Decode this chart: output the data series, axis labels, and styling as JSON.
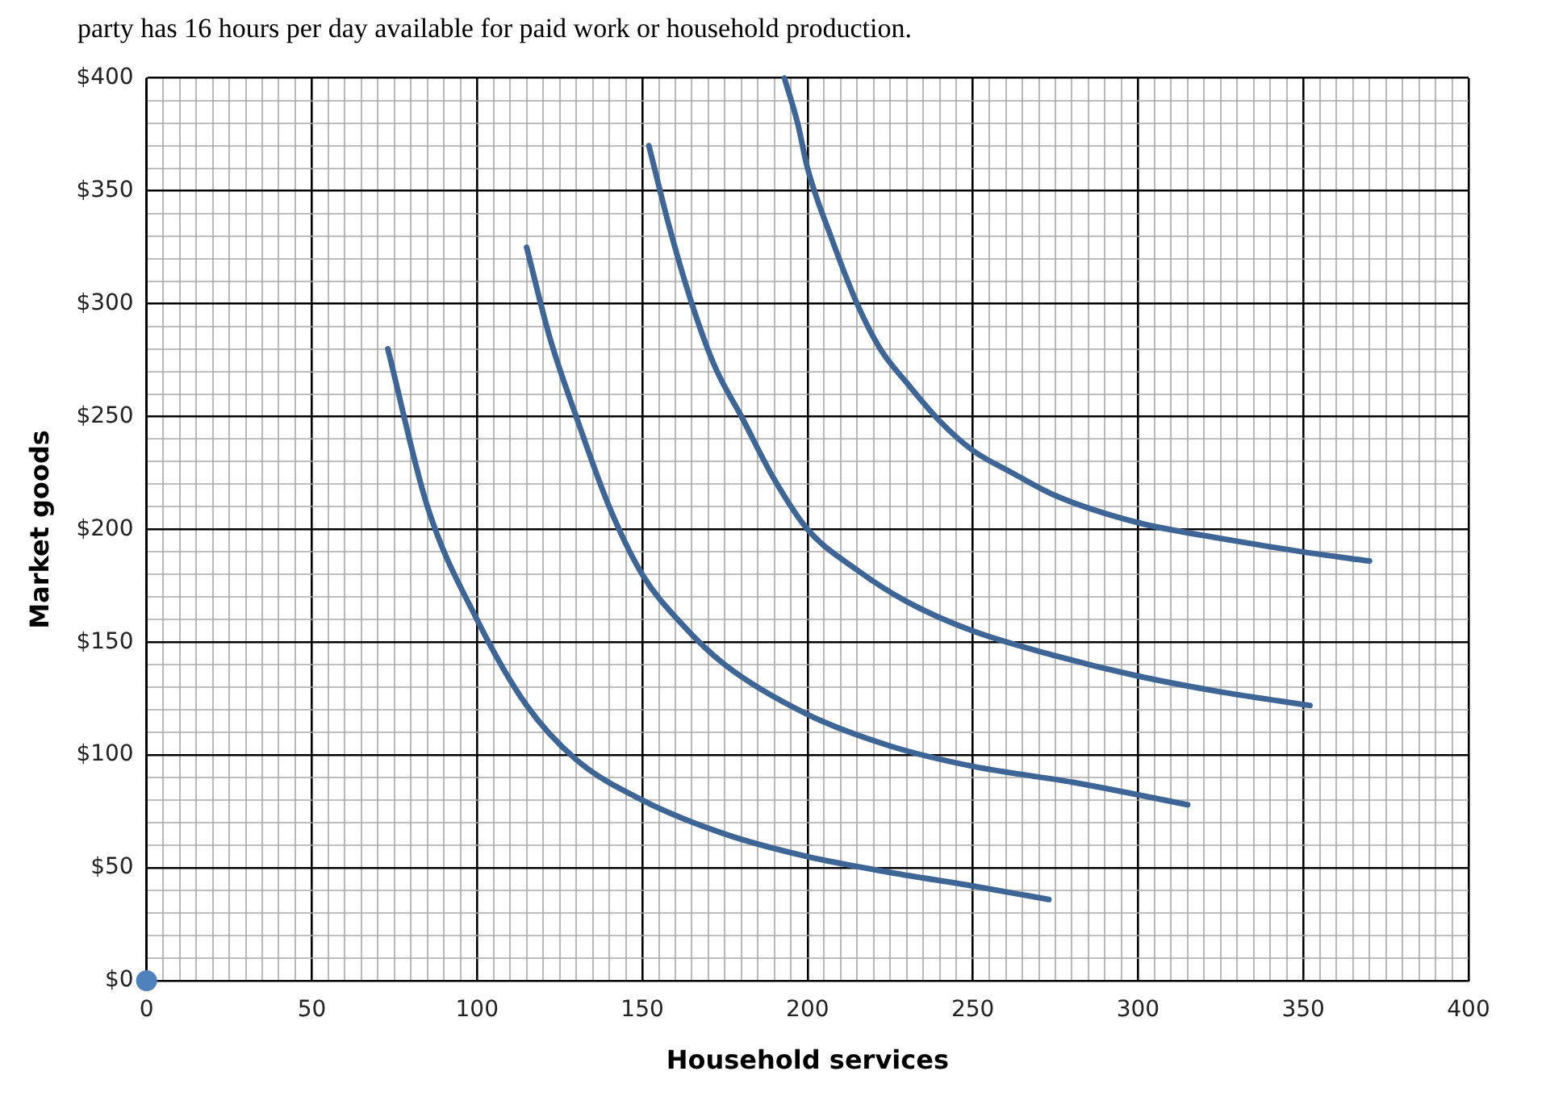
{
  "chart_data": {
    "type": "line",
    "annotations": [
      "party has 16 hours per day available for paid work or household production."
    ],
    "xlabel": "Household services",
    "ylabel": "Market goods",
    "xlim": [
      0,
      400
    ],
    "ylim": [
      0,
      400
    ],
    "xticks": [
      0,
      {
        "value": 5,
        "label": null
      },
      {
        "value": 10,
        "label": null
      },
      {
        "value": 15,
        "label": null
      },
      {
        "value": 20,
        "label": null
      },
      {
        "value": 25,
        "label": null
      },
      {
        "value": 30,
        "label": null
      },
      {
        "value": 35,
        "label": null
      },
      {
        "value": 40,
        "label": null
      },
      {
        "value": 45,
        "label": null
      },
      50,
      {
        "value": 55,
        "label": null
      },
      {
        "value": 60,
        "label": null
      },
      {
        "value": 65,
        "label": null
      },
      {
        "value": 70,
        "label": null
      },
      {
        "value": 75,
        "label": null
      },
      {
        "value": 80,
        "label": null
      },
      {
        "value": 85,
        "label": null
      },
      {
        "value": 90,
        "label": null
      },
      {
        "value": 95,
        "label": null
      },
      100,
      {
        "value": 105,
        "label": null
      },
      {
        "value": 110,
        "label": null
      },
      {
        "value": 115,
        "label": null
      },
      {
        "value": 120,
        "label": null
      },
      {
        "value": 125,
        "label": null
      },
      {
        "value": 130,
        "label": null
      },
      {
        "value": 135,
        "label": null
      },
      {
        "value": 140,
        "label": null
      },
      {
        "value": 145,
        "label": null
      },
      150,
      {
        "value": 155,
        "label": null
      },
      {
        "value": 160,
        "label": null
      },
      {
        "value": 165,
        "label": null
      },
      {
        "value": 170,
        "label": null
      },
      {
        "value": 175,
        "label": null
      },
      {
        "value": 180,
        "label": null
      },
      {
        "value": 185,
        "label": null
      },
      {
        "value": 190,
        "label": null
      },
      {
        "value": 195,
        "label": null
      },
      200,
      {
        "value": 205,
        "label": null
      },
      {
        "value": 210,
        "label": null
      },
      {
        "value": 215,
        "label": null
      },
      {
        "value": 220,
        "label": null
      },
      {
        "value": 225,
        "label": null
      },
      {
        "value": 230,
        "label": null
      },
      {
        "value": 235,
        "label": null
      },
      {
        "value": 240,
        "label": null
      },
      {
        "value": 245,
        "label": null
      },
      250,
      {
        "value": 255,
        "label": null
      },
      {
        "value": 260,
        "label": null
      },
      {
        "value": 265,
        "label": null
      },
      {
        "value": 270,
        "label": null
      },
      {
        "value": 275,
        "label": null
      },
      {
        "value": 280,
        "label": null
      },
      {
        "value": 285,
        "label": null
      },
      {
        "value": 290,
        "label": null
      },
      {
        "value": 295,
        "label": null
      },
      300,
      {
        "value": 305,
        "label": null
      },
      {
        "value": 310,
        "label": null
      },
      {
        "value": 315,
        "label": null
      },
      {
        "value": 320,
        "label": null
      },
      {
        "value": 325,
        "label": null
      },
      {
        "value": 330,
        "label": null
      },
      {
        "value": 335,
        "label": null
      },
      {
        "value": 340,
        "label": null
      },
      {
        "value": 345,
        "label": null
      },
      350,
      {
        "value": 355,
        "label": null
      },
      {
        "value": 360,
        "label": null
      },
      {
        "value": 365,
        "label": null
      },
      {
        "value": 370,
        "label": null
      },
      {
        "value": 375,
        "label": null
      },
      {
        "value": 380,
        "label": null
      },
      {
        "value": 385,
        "label": null
      },
      {
        "value": 390,
        "label": null
      },
      {
        "value": 395,
        "label": null
      },
      400
    ],
    "yticks": [
      {
        "value": 0,
        "label": "$0"
      },
      {
        "value": 10,
        "label": null
      },
      {
        "value": 20,
        "label": null
      },
      {
        "value": 30,
        "label": null
      },
      {
        "value": 40,
        "label": null
      },
      {
        "value": 50,
        "label": "$50"
      },
      {
        "value": 60,
        "label": null
      },
      {
        "value": 70,
        "label": null
      },
      {
        "value": 80,
        "label": null
      },
      {
        "value": 90,
        "label": null
      },
      {
        "value": 100,
        "label": "$100"
      },
      {
        "value": 110,
        "label": null
      },
      {
        "value": 120,
        "label": null
      },
      {
        "value": 130,
        "label": null
      },
      {
        "value": 140,
        "label": null
      },
      {
        "value": 150,
        "label": "$150"
      },
      {
        "value": 160,
        "label": null
      },
      {
        "value": 170,
        "label": null
      },
      {
        "value": 180,
        "label": null
      },
      {
        "value": 190,
        "label": null
      },
      {
        "value": 200,
        "label": "$200"
      },
      {
        "value": 210,
        "label": null
      },
      {
        "value": 220,
        "label": null
      },
      {
        "value": 230,
        "label": null
      },
      {
        "value": 240,
        "label": null
      },
      {
        "value": 250,
        "label": "$250"
      },
      {
        "value": 260,
        "label": null
      },
      {
        "value": 270,
        "label": null
      },
      {
        "value": 280,
        "label": null
      },
      {
        "value": 290,
        "label": null
      },
      {
        "value": 300,
        "label": "$300"
      },
      {
        "value": 310,
        "label": null
      },
      {
        "value": 320,
        "label": null
      },
      {
        "value": 330,
        "label": null
      },
      {
        "value": 340,
        "label": null
      },
      {
        "value": 350,
        "label": "$350"
      },
      {
        "value": 360,
        "label": null
      },
      {
        "value": 370,
        "label": null
      },
      {
        "value": 380,
        "label": null
      },
      {
        "value": 390,
        "label": null
      },
      {
        "value": 400,
        "label": "$400"
      }
    ],
    "grid": true,
    "legend": false,
    "series": [
      {
        "type": "line",
        "marker": "none",
        "color": "#3d6596",
        "x": [
          73,
          85,
          100,
          115,
          130,
          150,
          175,
          200,
          225,
          250,
          273
        ],
        "values": [
          280,
          210,
          160,
          122,
          98,
          80,
          65,
          55,
          48,
          42,
          36
        ]
      },
      {
        "type": "line",
        "marker": "none",
        "color": "#3d6596",
        "x": [
          115,
          122,
          130,
          140,
          150,
          162,
          175,
          200,
          225,
          250,
          280,
          315
        ],
        "values": [
          325,
          285,
          250,
          210,
          180,
          158,
          140,
          118,
          104,
          95,
          88,
          78
        ]
      },
      {
        "type": "line",
        "marker": "none",
        "color": "#3d6596",
        "x": [
          152,
          158,
          165,
          172,
          180,
          190,
          200,
          215,
          230,
          250,
          275,
          300,
          325,
          352
        ],
        "values": [
          370,
          335,
          300,
          272,
          250,
          222,
          200,
          182,
          168,
          155,
          144,
          135,
          128,
          122
        ]
      },
      {
        "type": "line",
        "marker": "none",
        "color": "#3d6596",
        "x": [
          193,
          197,
          200,
          207,
          215,
          222,
          230,
          240,
          250,
          262,
          275,
          300,
          325,
          350,
          370
        ],
        "values": [
          400,
          380,
          360,
          330,
          300,
          280,
          265,
          248,
          235,
          225,
          215,
          203,
          196,
          190,
          186
        ]
      },
      {
        "type": "scatter",
        "marker": "circle",
        "color": "#4f81bd",
        "x": [
          0
        ],
        "values": [
          0
        ]
      }
    ]
  }
}
